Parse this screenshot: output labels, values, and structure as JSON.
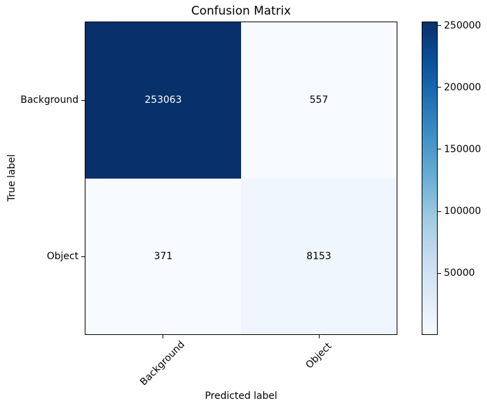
{
  "chart_data": {
    "type": "heatmap",
    "title": "Confusion Matrix",
    "xlabel": "Predicted label",
    "ylabel": "True label",
    "x_categories": [
      "Background",
      "Object"
    ],
    "y_categories": [
      "Background",
      "Object"
    ],
    "matrix": [
      [
        253063,
        557
      ],
      [
        371,
        8153
      ]
    ],
    "cell_colors": [
      [
        "#08306b",
        "#f7fbff"
      ],
      [
        "#f7fbff",
        "#f0f6fd"
      ]
    ],
    "cell_text_colors": [
      [
        "#ffffff",
        "#000000"
      ],
      [
        "#000000",
        "#000000"
      ]
    ],
    "colormap": "Blues",
    "vmin": 371,
    "vmax": 253063,
    "colorbar_ticks": [
      50000,
      100000,
      150000,
      200000,
      250000
    ],
    "colorbar_position": "right",
    "grid": false,
    "x_tick_rotation": 45
  }
}
